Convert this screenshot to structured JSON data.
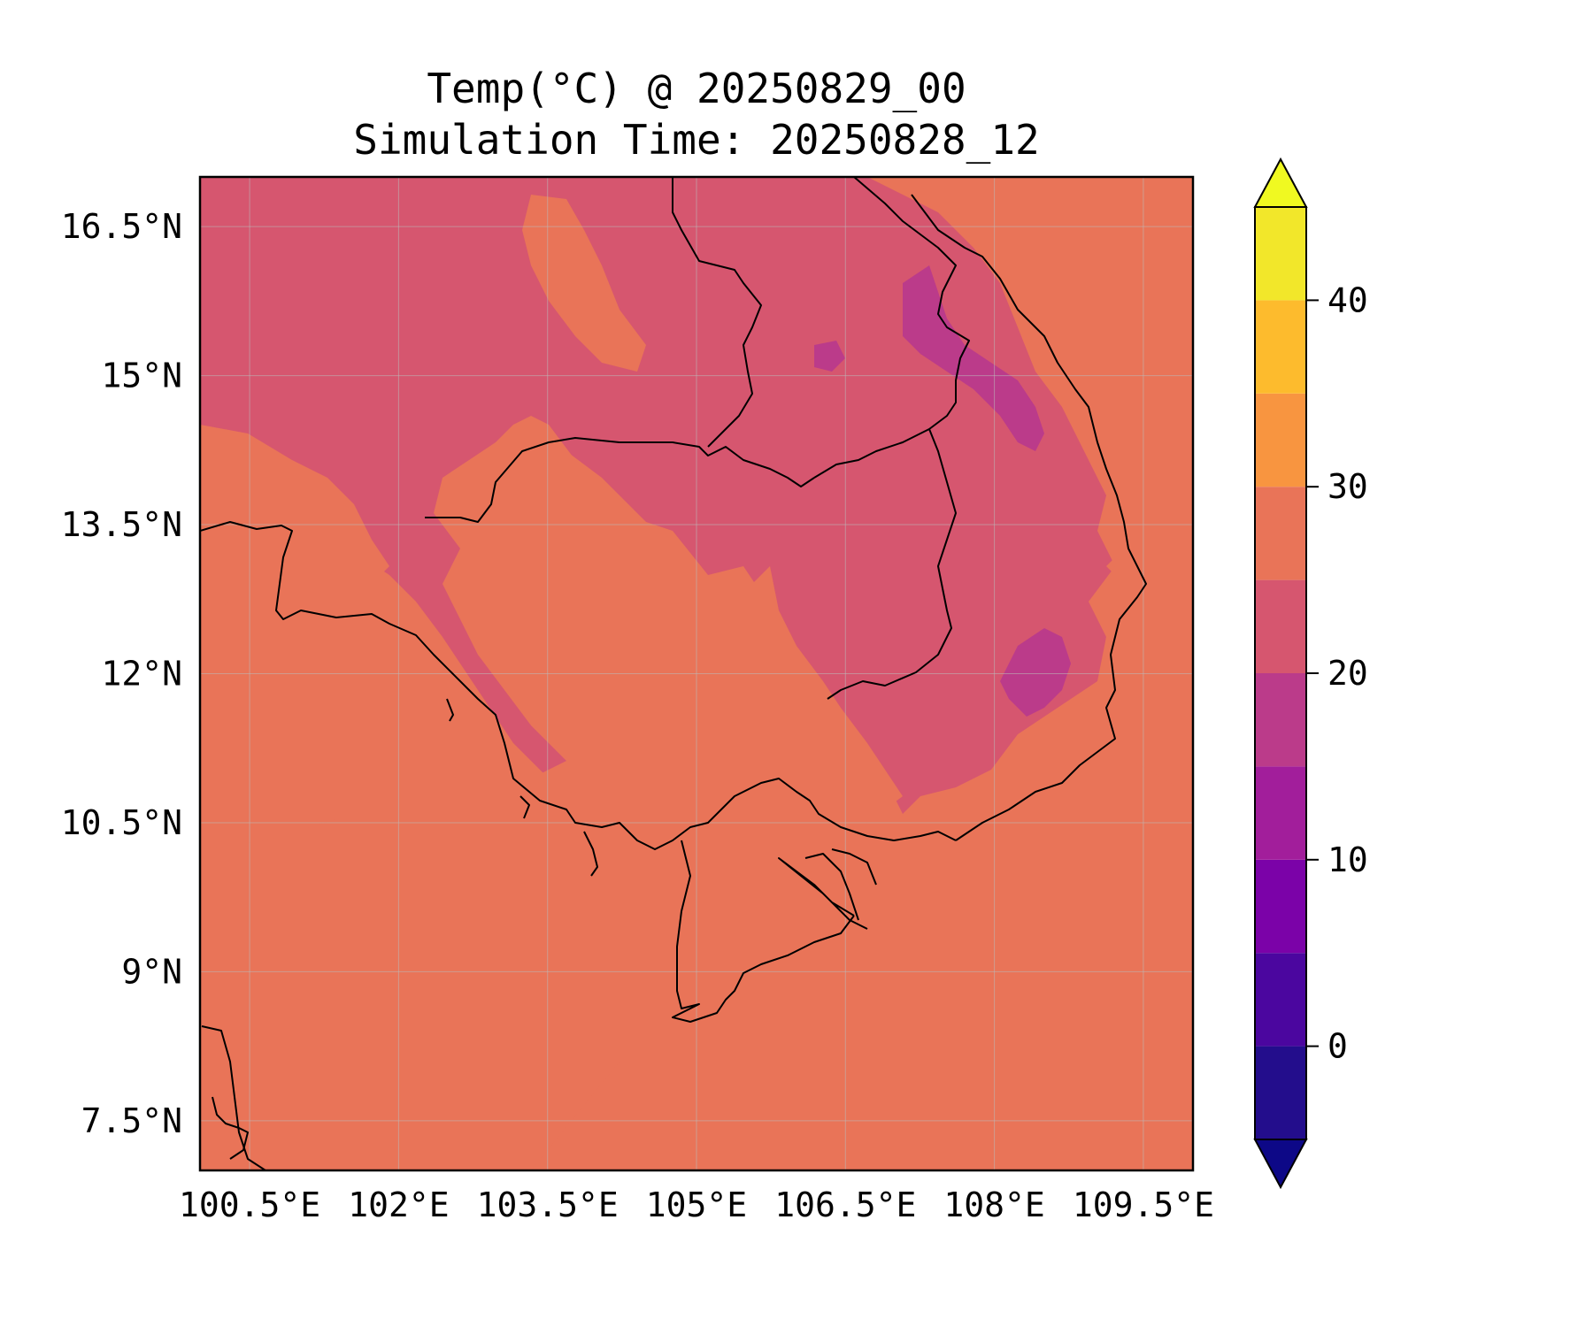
{
  "title_line1": "Temp(°C) @ 20250829_00",
  "title_line2": "Simulation Time: 20250828_12",
  "colors": {
    "base": "#e97458",
    "band_20_25": "#d6566f",
    "band_15_20": "#bb3b8a",
    "colorbar": [
      "#230d8c",
      "#4b069f",
      "#7b02a8",
      "#a21e9b",
      "#bb3b8a",
      "#d6566f",
      "#e97458",
      "#f89540",
      "#fdbb2d",
      "#f2e72a"
    ],
    "under": "#0d0887",
    "over": "#f0f921"
  },
  "map": {
    "lon_range": [
      100.0,
      110.0
    ],
    "lat_range": [
      7.0,
      17.0
    ],
    "lon_ticks": [
      100.5,
      102.0,
      103.5,
      105.0,
      106.5,
      108.0,
      109.5
    ],
    "lat_ticks": [
      7.5,
      9.0,
      10.5,
      12.0,
      13.5,
      15.0,
      16.5
    ],
    "lon_labels": [
      "100.5°E",
      "102°E",
      "103.5°E",
      "105°E",
      "106.5°E",
      "108°E",
      "109.5°E"
    ],
    "lat_labels": [
      "7.5°N",
      "9°N",
      "10.5°N",
      "12°N",
      "13.5°N",
      "15°N",
      "16.5°N"
    ]
  },
  "colorbar": {
    "levels": [
      -5,
      0,
      5,
      10,
      15,
      20,
      25,
      30,
      35,
      40,
      45
    ],
    "tick_values": [
      0,
      10,
      20,
      30,
      40
    ],
    "tick_labels": [
      "0",
      "10",
      "20",
      "30",
      "40"
    ],
    "extend": "both"
  }
}
